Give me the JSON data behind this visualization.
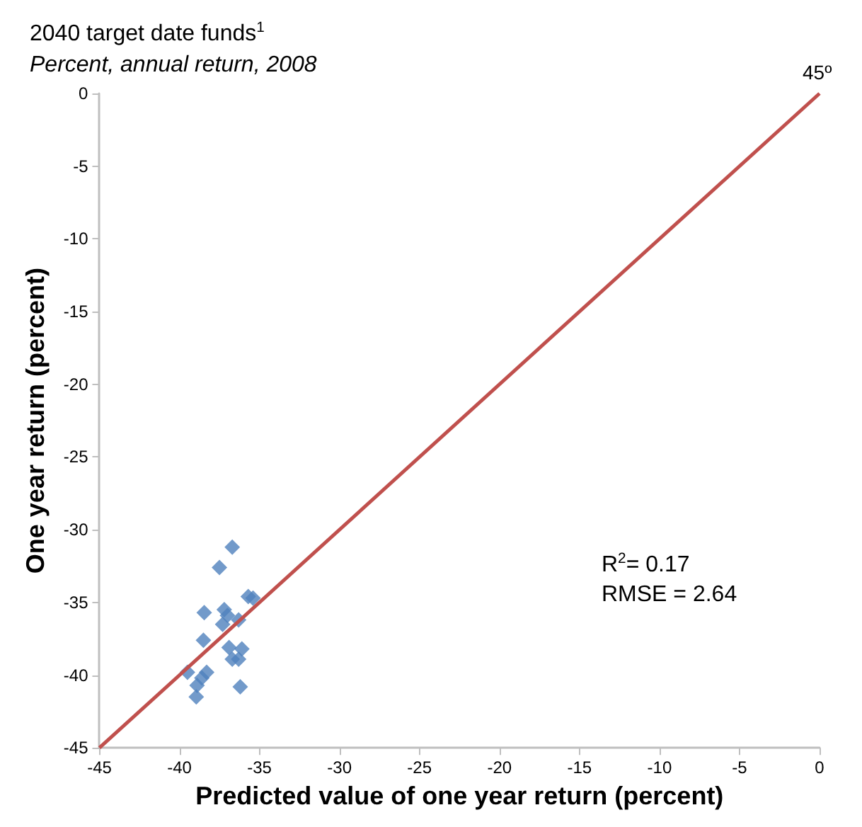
{
  "chart_data": {
    "type": "scatter",
    "title": "2040 target date funds$^{1}$",
    "subtitle": "Percent, annual return, 2008",
    "xlabel": "Predicted value of one year return (percent)",
    "ylabel": "One year return (percent)",
    "series": [
      {
        "color": "#4f81bd",
        "marker": "diamond",
        "x": [
          -36.7,
          -37.5,
          -38.45,
          -37.2,
          -37.0,
          -37.3,
          -36.3,
          -35.7,
          -35.4,
          -38.5,
          -36.9,
          -36.1,
          -36.7,
          -36.3,
          -39.5,
          -38.3,
          -38.6,
          -38.9,
          -36.2,
          -38.95
        ],
        "values": [
          -31.2,
          -32.6,
          -35.7,
          -35.5,
          -35.9,
          -36.5,
          -36.2,
          -34.6,
          -34.7,
          -37.6,
          -38.1,
          -38.2,
          -38.9,
          -38.9,
          -39.8,
          -39.8,
          -40.2,
          -40.7,
          -40.8,
          -41.5
        ]
      },
      {
        "type": "line",
        "color": "#c0504d",
        "marker": "none",
        "x": [
          -45,
          0
        ],
        "values": [
          -45,
          0
        ]
      }
    ],
    "xlim": [
      -45,
      0
    ],
    "xticks": [
      -45,
      -40,
      -35,
      -30,
      -25,
      -20,
      -15,
      -10,
      -5,
      0
    ],
    "ylim": [
      -45,
      0
    ],
    "yticks": [
      -45,
      -40,
      -35,
      -30,
      -25,
      -20,
      -15,
      -10,
      -5,
      0
    ],
    "grid": false,
    "annotations": [
      {
        "text": "45º",
        "x": 0,
        "y": 0
      },
      "R$^{2}$= 0.17",
      "RMSE = 2.64"
    ]
  }
}
